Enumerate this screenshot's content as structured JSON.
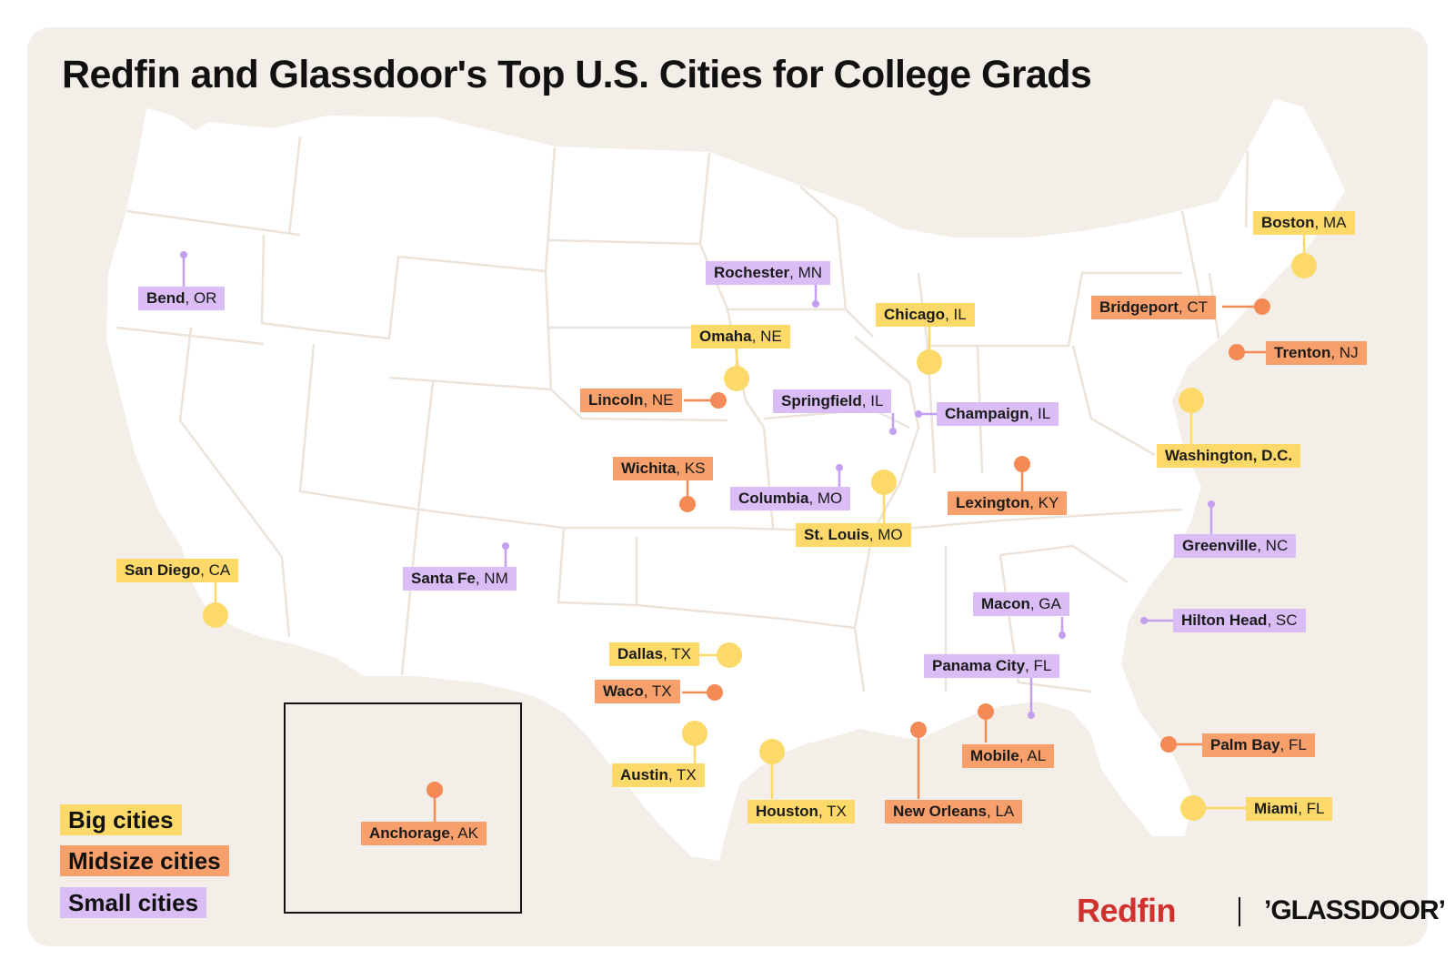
{
  "title": "Redfin and Glassdoor's Top U.S. Cities for College Grads",
  "colors": {
    "background": "#f3eee8",
    "land": "#ffffff",
    "big": "#fcd968",
    "midsize": "#f7a06c",
    "small": "#d9bdf4",
    "big_dot": "#fcd968",
    "midsize_dot": "#f48b56",
    "small_dot": "#c49ef0",
    "redfin": "#d0312d"
  },
  "legend": {
    "big": "Big cities",
    "midsize": "Midsize cities",
    "small": "Small cities"
  },
  "cities": [
    {
      "id": "bend",
      "name": "Bend",
      "state": ", OR",
      "category": "small"
    },
    {
      "id": "rochester",
      "name": "Rochester",
      "state": ", MN",
      "category": "small"
    },
    {
      "id": "boston",
      "name": "Boston",
      "state": ", MA",
      "category": "big"
    },
    {
      "id": "bridgeport",
      "name": "Bridgeport",
      "state": ", CT",
      "category": "midsize"
    },
    {
      "id": "chicago",
      "name": "Chicago",
      "state": ", IL",
      "category": "big"
    },
    {
      "id": "omaha",
      "name": "Omaha",
      "state": ", NE",
      "category": "big"
    },
    {
      "id": "trenton",
      "name": "Trenton",
      "state": ", NJ",
      "category": "midsize"
    },
    {
      "id": "lincoln",
      "name": "Lincoln",
      "state": ", NE",
      "category": "midsize"
    },
    {
      "id": "springfield",
      "name": "Springfield",
      "state": ", IL",
      "category": "small"
    },
    {
      "id": "champaign",
      "name": "Champaign",
      "state": ", IL",
      "category": "small"
    },
    {
      "id": "washington",
      "name": "Washington, D.C.",
      "state": "",
      "category": "big"
    },
    {
      "id": "wichita",
      "name": "Wichita",
      "state": ", KS",
      "category": "midsize"
    },
    {
      "id": "columbia",
      "name": "Columbia",
      "state": ", MO",
      "category": "small"
    },
    {
      "id": "lexington",
      "name": "Lexington",
      "state": ", KY",
      "category": "midsize"
    },
    {
      "id": "stlouis",
      "name": "St. Louis",
      "state": ", MO",
      "category": "big"
    },
    {
      "id": "greenville",
      "name": "Greenville",
      "state": ", NC",
      "category": "small"
    },
    {
      "id": "sandiego",
      "name": "San Diego",
      "state": ", CA",
      "category": "big"
    },
    {
      "id": "santafe",
      "name": "Santa Fe",
      "state": ", NM",
      "category": "small"
    },
    {
      "id": "macon",
      "name": "Macon",
      "state": ", GA",
      "category": "small"
    },
    {
      "id": "hiltonhead",
      "name": "Hilton Head",
      "state": ", SC",
      "category": "small"
    },
    {
      "id": "dallas",
      "name": "Dallas",
      "state": ", TX",
      "category": "big"
    },
    {
      "id": "panamacity",
      "name": "Panama City",
      "state": ", FL",
      "category": "small"
    },
    {
      "id": "waco",
      "name": "Waco",
      "state": ", TX",
      "category": "midsize"
    },
    {
      "id": "palmbay",
      "name": "Palm Bay",
      "state": ", FL",
      "category": "midsize"
    },
    {
      "id": "mobile",
      "name": "Mobile",
      "state": ", AL",
      "category": "midsize"
    },
    {
      "id": "austin",
      "name": "Austin",
      "state": ", TX",
      "category": "big"
    },
    {
      "id": "houston",
      "name": "Houston",
      "state": ", TX",
      "category": "big"
    },
    {
      "id": "neworleans",
      "name": "New Orleans",
      "state": ", LA",
      "category": "midsize"
    },
    {
      "id": "miami",
      "name": "Miami",
      "state": ", FL",
      "category": "big"
    },
    {
      "id": "anchorage",
      "name": "Anchorage",
      "state": ", AK",
      "category": "midsize"
    }
  ],
  "logos": {
    "redfin": "Redfin",
    "glassdoor": "’GLASSDOOR’"
  }
}
